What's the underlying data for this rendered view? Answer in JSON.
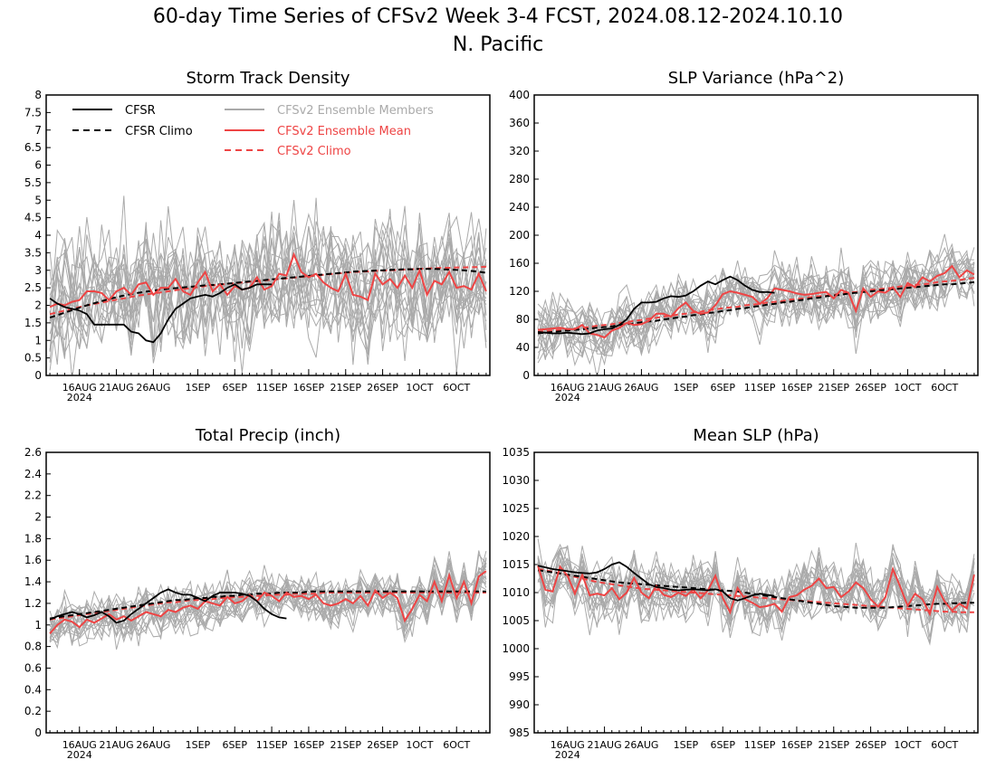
{
  "figure": {
    "title_line1": "60-day Time Series of CFSv2 Week 3-4 FCST, 2024.08.12-2024.10.10",
    "title_line2": "N. Pacific"
  },
  "colors": {
    "cfsr": "#000000",
    "members": "#aaaaaa",
    "ens_mean": "#ee4444"
  },
  "legend": {
    "cfsr": "CFSR",
    "cfsr_climo": "CFSR Climo",
    "members": "CFSv2 Ensemble Members",
    "ens_mean": "CFSv2 Ensemble Mean",
    "cfsv2_climo": "CFSv2 Climo"
  },
  "x_axis": {
    "days": 60,
    "ticks": [
      {
        "day": 4,
        "label": "16AUG"
      },
      {
        "day": 9,
        "label": "21AUG"
      },
      {
        "day": 14,
        "label": "26AUG"
      },
      {
        "day": 20,
        "label": "1SEP"
      },
      {
        "day": 25,
        "label": "6SEP"
      },
      {
        "day": 30,
        "label": "11SEP"
      },
      {
        "day": 35,
        "label": "16SEP"
      },
      {
        "day": 40,
        "label": "21SEP"
      },
      {
        "day": 45,
        "label": "26SEP"
      },
      {
        "day": 50,
        "label": "1OCT"
      },
      {
        "day": 55,
        "label": "6OCT"
      }
    ],
    "year_label": "2024"
  },
  "chart_data": [
    {
      "type": "line",
      "title": "Storm Track Density",
      "ylim": [
        0,
        8
      ],
      "yticks": [
        "0",
        "0.5",
        "1",
        "1.5",
        "2",
        "2.5",
        "3",
        "3.5",
        "4",
        "4.5",
        "5",
        "5.5",
        "6",
        "6.5",
        "7",
        "7.5",
        "8"
      ],
      "member_count": 20,
      "member_spread": 0.9,
      "has_legend": true,
      "cfsr": [
        2.2,
        2.05,
        1.95,
        1.9,
        1.85,
        1.75,
        1.45,
        1.45,
        1.45,
        1.45,
        1.45,
        1.25,
        1.2,
        1.0,
        0.95,
        1.2,
        1.6,
        1.9,
        2.05,
        2.2,
        2.25,
        2.3,
        2.25,
        2.35,
        2.5,
        2.6,
        2.45,
        2.5,
        2.6,
        2.6,
        2.6
      ],
      "cfsr_climo": [
        1.65,
        1.72,
        1.79,
        1.86,
        1.93,
        2.0,
        2.06,
        2.12,
        2.18,
        2.23,
        2.28,
        2.32,
        2.36,
        2.39,
        2.42,
        2.45,
        2.47,
        2.49,
        2.51,
        2.53,
        2.55,
        2.57,
        2.58,
        2.6,
        2.62,
        2.64,
        2.66,
        2.68,
        2.7,
        2.72,
        2.74,
        2.76,
        2.78,
        2.8,
        2.82,
        2.84,
        2.86,
        2.88,
        2.9,
        2.92,
        2.94,
        2.96,
        2.97,
        2.98,
        2.99,
        3.0,
        3.01,
        3.02,
        3.03,
        3.03,
        3.04,
        3.04,
        3.04,
        3.03,
        3.02,
        3.01,
        3.0,
        2.98,
        2.96,
        2.93
      ],
      "ens_mean": [
        1.95,
        2.05,
        2.0,
        2.1,
        2.15,
        2.4,
        2.4,
        2.35,
        2.15,
        2.4,
        2.5,
        2.3,
        2.6,
        2.65,
        2.3,
        2.5,
        2.5,
        2.75,
        2.4,
        2.3,
        2.65,
        2.95,
        2.4,
        2.6,
        2.3,
        2.55,
        2.45,
        2.5,
        2.8,
        2.45,
        2.55,
        2.9,
        2.85,
        3.45,
        2.95,
        2.8,
        2.9,
        2.65,
        2.5,
        2.4,
        2.9,
        2.3,
        2.25,
        2.15,
        2.9,
        2.6,
        2.75,
        2.5,
        2.85,
        2.5,
        3.0,
        2.3,
        2.7,
        2.6,
        2.95,
        2.5,
        2.55,
        2.45,
        2.9,
        2.4
      ],
      "cfsv2_climo": [
        1.75,
        1.8,
        1.85,
        1.9,
        1.95,
        2.0,
        2.04,
        2.08,
        2.12,
        2.16,
        2.2,
        2.24,
        2.28,
        2.31,
        2.34,
        2.37,
        2.4,
        2.43,
        2.46,
        2.49,
        2.52,
        2.55,
        2.57,
        2.59,
        2.61,
        2.63,
        2.65,
        2.67,
        2.69,
        2.71,
        2.73,
        2.75,
        2.77,
        2.79,
        2.81,
        2.83,
        2.85,
        2.87,
        2.89,
        2.91,
        2.93,
        2.95,
        2.96,
        2.97,
        2.98,
        2.99,
        3.0,
        3.01,
        3.02,
        3.03,
        3.04,
        3.05,
        3.06,
        3.07,
        3.07,
        3.08,
        3.08,
        3.09,
        3.09,
        3.1
      ]
    },
    {
      "type": "line",
      "title": "SLP Variance (hPa^2)",
      "ylim": [
        0,
        400
      ],
      "yticks": [
        "0",
        "40",
        "80",
        "120",
        "160",
        "200",
        "240",
        "280",
        "320",
        "360",
        "400"
      ],
      "member_count": 20,
      "member_spread": 22,
      "has_legend": false,
      "cfsr": [
        62,
        61,
        60,
        60,
        61,
        60,
        59,
        60,
        64,
        66,
        67,
        72,
        80,
        95,
        104,
        104,
        105,
        110,
        113,
        112,
        114,
        120,
        128,
        134,
        130,
        136,
        141,
        136,
        128,
        122,
        119,
        119,
        118
      ],
      "cfsr_climo": [
        60,
        61,
        62,
        63,
        64,
        65,
        66,
        67,
        68,
        69,
        70,
        72,
        73,
        74,
        76,
        77,
        78,
        80,
        81,
        83,
        84,
        86,
        87,
        89,
        90,
        92,
        93,
        95,
        96,
        98,
        99,
        101,
        102,
        104,
        105,
        107,
        108,
        110,
        111,
        113,
        114,
        115,
        117,
        118,
        119,
        120,
        121,
        122,
        123,
        124,
        125,
        126,
        127,
        128,
        129,
        130,
        130,
        131,
        132,
        133
      ],
      "ens_mean": [
        65,
        66,
        67,
        68,
        66,
        66,
        72,
        60,
        58,
        54,
        64,
        68,
        75,
        72,
        73,
        78,
        88,
        88,
        84,
        96,
        104,
        92,
        88,
        90,
        100,
        116,
        120,
        118,
        115,
        112,
        102,
        110,
        124,
        122,
        120,
        117,
        115,
        116,
        118,
        119,
        110,
        122,
        118,
        92,
        124,
        112,
        120,
        118,
        126,
        112,
        132,
        126,
        140,
        134,
        142,
        146,
        156,
        140,
        150,
        144
      ],
      "cfsv2_climo": [
        62,
        63,
        64,
        65,
        66,
        67,
        68,
        69,
        71,
        72,
        73,
        75,
        76,
        78,
        79,
        81,
        82,
        84,
        85,
        87,
        88,
        90,
        91,
        93,
        94,
        96,
        97,
        98,
        100,
        101,
        102,
        104,
        105,
        106,
        108,
        109,
        110,
        112,
        113,
        114,
        115,
        117,
        118,
        119,
        120,
        122,
        123,
        124,
        125,
        127,
        128,
        129,
        130,
        131,
        133,
        134,
        135,
        136,
        138,
        139
      ]
    },
    {
      "type": "line",
      "title": "Total Precip (inch)",
      "ylim": [
        0,
        2.6
      ],
      "yticks": [
        "0",
        "0.2",
        "0.4",
        "0.6",
        "0.8",
        "1",
        "1.2",
        "1.4",
        "1.6",
        "1.8",
        "2",
        "2.2",
        "2.4",
        "2.6"
      ],
      "member_count": 20,
      "member_spread": 0.11,
      "has_legend": false,
      "cfsr": [
        1.05,
        1.08,
        1.1,
        1.12,
        1.1,
        1.07,
        1.09,
        1.12,
        1.08,
        1.02,
        1.04,
        1.1,
        1.15,
        1.2,
        1.25,
        1.3,
        1.33,
        1.3,
        1.28,
        1.28,
        1.25,
        1.22,
        1.27,
        1.3,
        1.3,
        1.3,
        1.29,
        1.27,
        1.22,
        1.15,
        1.1,
        1.07,
        1.06
      ],
      "cfsr_climo": [
        1.06,
        1.07,
        1.08,
        1.09,
        1.1,
        1.11,
        1.12,
        1.13,
        1.14,
        1.15,
        1.16,
        1.17,
        1.18,
        1.19,
        1.2,
        1.21,
        1.22,
        1.23,
        1.23,
        1.24,
        1.25,
        1.25,
        1.26,
        1.26,
        1.27,
        1.27,
        1.28,
        1.28,
        1.29,
        1.29,
        1.29,
        1.3,
        1.3,
        1.3,
        1.3,
        1.31,
        1.31,
        1.31,
        1.31,
        1.31,
        1.31,
        1.31,
        1.31,
        1.31,
        1.31,
        1.31,
        1.31,
        1.31,
        1.31,
        1.31,
        1.31,
        1.31,
        1.31,
        1.31,
        1.31,
        1.31,
        1.31,
        1.31,
        1.31,
        1.31
      ],
      "ens_mean": [
        0.92,
        1.0,
        1.05,
        1.03,
        0.98,
        1.05,
        1.02,
        1.06,
        1.1,
        1.05,
        1.08,
        1.04,
        1.08,
        1.12,
        1.1,
        1.08,
        1.14,
        1.12,
        1.16,
        1.18,
        1.15,
        1.22,
        1.2,
        1.18,
        1.26,
        1.2,
        1.22,
        1.28,
        1.22,
        1.3,
        1.27,
        1.22,
        1.3,
        1.26,
        1.27,
        1.24,
        1.28,
        1.2,
        1.18,
        1.2,
        1.24,
        1.2,
        1.27,
        1.18,
        1.32,
        1.25,
        1.3,
        1.25,
        1.04,
        1.15,
        1.28,
        1.22,
        1.4,
        1.22,
        1.46,
        1.25,
        1.4,
        1.2,
        1.45,
        1.5
      ],
      "cfsv2_climo": [
        1.05,
        1.06,
        1.07,
        1.08,
        1.09,
        1.1,
        1.11,
        1.12,
        1.13,
        1.14,
        1.15,
        1.16,
        1.17,
        1.18,
        1.19,
        1.2,
        1.21,
        1.21,
        1.22,
        1.23,
        1.23,
        1.24,
        1.24,
        1.25,
        1.25,
        1.26,
        1.26,
        1.27,
        1.27,
        1.27,
        1.28,
        1.28,
        1.28,
        1.29,
        1.29,
        1.29,
        1.29,
        1.3,
        1.3,
        1.3,
        1.3,
        1.3,
        1.3,
        1.3,
        1.3,
        1.3,
        1.3,
        1.3,
        1.3,
        1.3,
        1.3,
        1.3,
        1.3,
        1.3,
        1.3,
        1.3,
        1.3,
        1.3,
        1.3,
        1.3
      ]
    },
    {
      "type": "line",
      "title": "Mean SLP (hPa)",
      "ylim": [
        985,
        1035
      ],
      "yticks": [
        "985",
        "990",
        "995",
        "1000",
        "1005",
        "1010",
        "1015",
        "1020",
        "1025",
        "1030",
        "1035"
      ],
      "member_count": 20,
      "member_spread": 2.6,
      "has_legend": false,
      "cfsr": [
        1014.8,
        1014.5,
        1014.2,
        1014.0,
        1013.8,
        1013.6,
        1013.5,
        1013.4,
        1013.6,
        1014.2,
        1015.0,
        1015.4,
        1014.6,
        1013.5,
        1012.5,
        1011.5,
        1011.0,
        1010.8,
        1010.5,
        1010.4,
        1010.5,
        1010.6,
        1010.5,
        1010.4,
        1010.6,
        1010.2,
        1009.0,
        1008.6,
        1009.0,
        1009.5,
        1009.8,
        1009.6,
        1009.4
      ],
      "cfsr_climo": [
        1014.0,
        1013.8,
        1013.6,
        1013.4,
        1013.2,
        1013.0,
        1012.8,
        1012.6,
        1012.4,
        1012.2,
        1012.0,
        1011.8,
        1011.7,
        1011.6,
        1011.5,
        1011.4,
        1011.3,
        1011.2,
        1011.1,
        1011.0,
        1010.9,
        1010.8,
        1010.7,
        1010.6,
        1010.5,
        1010.4,
        1010.3,
        1010.2,
        1010.0,
        1009.8,
        1009.6,
        1009.4,
        1009.2,
        1009.0,
        1008.8,
        1008.6,
        1008.4,
        1008.2,
        1008.0,
        1007.8,
        1007.6,
        1007.5,
        1007.4,
        1007.3,
        1007.3,
        1007.3,
        1007.3,
        1007.3,
        1007.4,
        1007.5,
        1007.6,
        1007.7,
        1007.8,
        1007.9,
        1008.0,
        1008.0,
        1008.1,
        1008.1,
        1008.2,
        1008.2
      ],
      "ens_mean": [
        1014.8,
        1010.5,
        1010.2,
        1014.6,
        1013.0,
        1009.8,
        1013.2,
        1009.5,
        1009.8,
        1009.5,
        1010.8,
        1008.8,
        1010.0,
        1012.6,
        1010.0,
        1009.0,
        1011.2,
        1009.6,
        1009.2,
        1010.0,
        1009.4,
        1010.5,
        1009.0,
        1010.4,
        1013.0,
        1009.0,
        1006.5,
        1010.8,
        1008.8,
        1008.2,
        1007.4,
        1007.6,
        1008.0,
        1006.6,
        1009.2,
        1009.5,
        1010.5,
        1011.2,
        1012.5,
        1010.8,
        1011.0,
        1009.2,
        1010.2,
        1011.8,
        1010.8,
        1008.8,
        1007.5,
        1009.2,
        1014.2,
        1011.0,
        1007.6,
        1009.8,
        1008.8,
        1006.2,
        1011.0,
        1008.4,
        1006.8,
        1008.0,
        1007.2,
        1013.2
      ],
      "cfsv2_climo": [
        1014.2,
        1014.0,
        1013.7,
        1013.4,
        1013.1,
        1012.8,
        1012.5,
        1012.2,
        1011.9,
        1011.7,
        1011.5,
        1011.3,
        1011.1,
        1010.9,
        1010.7,
        1010.6,
        1010.5,
        1010.4,
        1010.3,
        1010.2,
        1010.1,
        1010.0,
        1009.9,
        1009.8,
        1009.7,
        1009.6,
        1009.5,
        1009.4,
        1009.3,
        1009.2,
        1009.1,
        1009.0,
        1008.9,
        1008.8,
        1008.7,
        1008.6,
        1008.5,
        1008.4,
        1008.3,
        1008.2,
        1008.1,
        1008.0,
        1007.9,
        1007.8,
        1007.7,
        1007.6,
        1007.5,
        1007.4,
        1007.3,
        1007.2,
        1007.1,
        1007.0,
        1006.9,
        1006.8,
        1006.7,
        1006.6,
        1006.6,
        1006.5,
        1006.5,
        1006.5
      ]
    }
  ]
}
